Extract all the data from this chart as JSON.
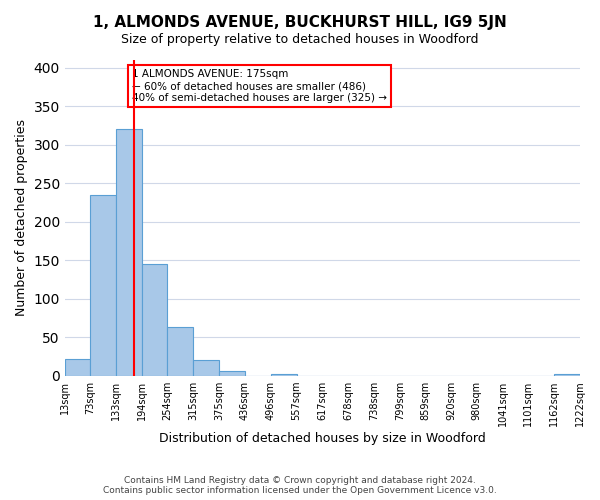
{
  "title": "1, ALMONDS AVENUE, BUCKHURST HILL, IG9 5JN",
  "subtitle": "Size of property relative to detached houses in Woodford",
  "xlabel": "Distribution of detached houses by size in Woodford",
  "ylabel": "Number of detached properties",
  "bar_color": "#a8c8e8",
  "bar_edge_color": "#5a9fd4",
  "vline_x": 175,
  "vline_color": "red",
  "bin_edges": [
    13,
    73,
    133,
    194,
    254,
    315,
    375,
    436,
    496,
    557,
    617,
    678,
    738,
    799,
    859,
    920,
    980,
    1041,
    1101,
    1162,
    1222
  ],
  "bar_heights": [
    22,
    235,
    320,
    145,
    63,
    21,
    7,
    0,
    3,
    0,
    0,
    0,
    0,
    0,
    0,
    0,
    0,
    0,
    0,
    3
  ],
  "ylim": [
    0,
    410
  ],
  "yticks": [
    0,
    50,
    100,
    150,
    200,
    250,
    300,
    350,
    400
  ],
  "annotation_title": "1 ALMONDS AVENUE: 175sqm",
  "annotation_line1": "← 60% of detached houses are smaller (486)",
  "annotation_line2": "40% of semi-detached houses are larger (325) →",
  "footer_line1": "Contains HM Land Registry data © Crown copyright and database right 2024.",
  "footer_line2": "Contains public sector information licensed under the Open Government Licence v3.0.",
  "background_color": "#ffffff",
  "grid_color": "#d0d8e8"
}
